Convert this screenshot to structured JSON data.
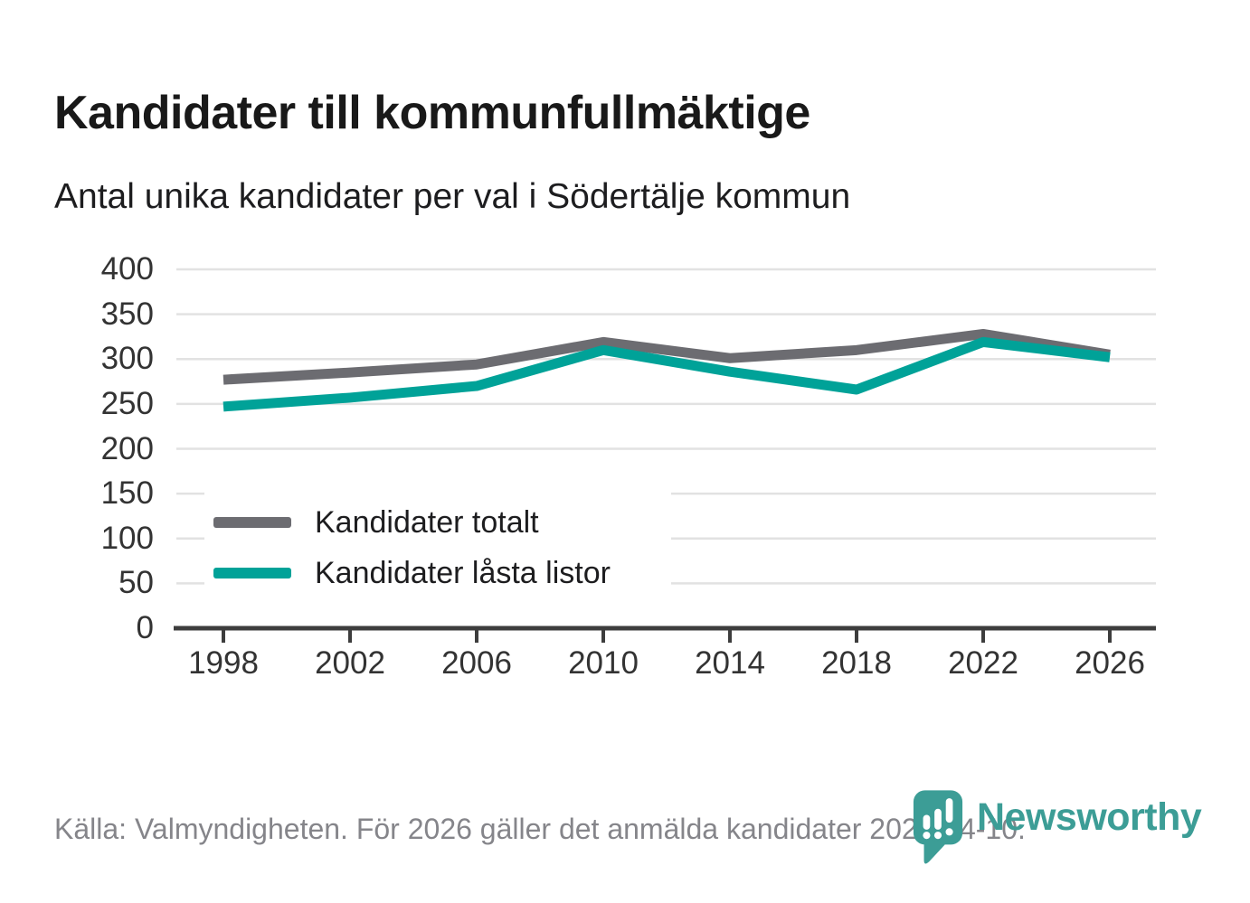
{
  "chart_data": {
    "type": "line",
    "title": "Kandidater till kommunfullmäktige",
    "subtitle": "Antal unika kandidater per val i Södertälje kommun",
    "categories": [
      "1998",
      "2002",
      "2006",
      "2010",
      "2014",
      "2018",
      "2022",
      "2026"
    ],
    "series": [
      {
        "name": "Kandidater totalt",
        "color": "#6c6c71",
        "values": [
          277,
          285,
          294,
          319,
          301,
          310,
          328,
          305
        ]
      },
      {
        "name": "Kandidater låsta listor",
        "color": "#00a298",
        "values": [
          247,
          257,
          270,
          310,
          286,
          266,
          319,
          302
        ]
      }
    ],
    "ylim": [
      0,
      400
    ],
    "ytick_step": 50,
    "grid": "horizontal-only",
    "grid_color": "#e2e2e2",
    "axis_color": "#3d3d3d",
    "tick_label_color": "#333333",
    "legend_position": "inside bottom-left",
    "legend_background": "#ffffff"
  },
  "footer": {
    "source_text": "Källa: Valmyndigheten. För 2026 gäller det anmälda kandidater 2026-04-10."
  },
  "branding": {
    "logo_text": "Newsworthy",
    "logo_color": "#3c9d96",
    "logo_icon": "newsworthy-pin-bar-chart-icon"
  }
}
